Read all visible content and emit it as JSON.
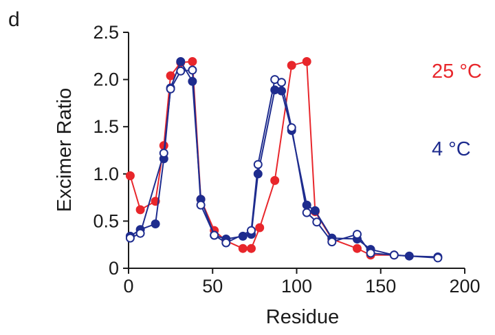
{
  "panel_label": "d",
  "chart_data": {
    "type": "line",
    "title": "",
    "xlabel": "Residue",
    "ylabel": "Excimer Ratio",
    "xlim": [
      0,
      200
    ],
    "ylim": [
      0,
      2.5
    ],
    "x_ticks": [
      0,
      50,
      100,
      150,
      200
    ],
    "y_ticks": [
      0,
      0.5,
      1.0,
      1.5,
      2.0,
      2.5
    ],
    "x_tick_labels": [
      "0",
      "50",
      "100",
      "150",
      "200"
    ],
    "y_tick_labels": [
      "0",
      "0.5",
      "1.0",
      "1.5",
      "2.0",
      "2.5"
    ],
    "grid": false,
    "legend_placement": "right",
    "series": [
      {
        "name": "25 °C",
        "color": "#e8262b",
        "marker": "filled-circle",
        "x": [
          1,
          7,
          16,
          21,
          25,
          31,
          38,
          43,
          51,
          58,
          68,
          73,
          78,
          87,
          97,
          106,
          111,
          121,
          136,
          144,
          158
        ],
        "y": [
          0.98,
          0.62,
          0.71,
          1.3,
          2.04,
          2.18,
          2.19,
          0.73,
          0.4,
          0.29,
          0.21,
          0.21,
          0.43,
          0.93,
          2.15,
          2.19,
          0.6,
          0.31,
          0.21,
          0.14,
          0.14
        ]
      },
      {
        "name": "4 °C",
        "color": "#1e2c8e",
        "marker": "filled-circle",
        "x": [
          1,
          7,
          16,
          21,
          25,
          31,
          38,
          43,
          51,
          58,
          68,
          73,
          77,
          87,
          91,
          97,
          106,
          111,
          121,
          136,
          144,
          158,
          167,
          184
        ],
        "y": [
          0.34,
          0.41,
          0.47,
          1.16,
          1.91,
          2.19,
          1.98,
          0.73,
          0.35,
          0.31,
          0.34,
          0.36,
          1.0,
          1.89,
          1.88,
          1.46,
          0.67,
          0.61,
          0.32,
          0.31,
          0.2,
          0.14,
          0.13,
          0.12
        ]
      },
      {
        "name": "4 °C open",
        "color": "#1e2c8e",
        "marker": "open-circle",
        "x": [
          1,
          7,
          21,
          25,
          31,
          38,
          43,
          51,
          58,
          73,
          77,
          87,
          91,
          97,
          106,
          112,
          121,
          136,
          144,
          158,
          184
        ],
        "y": [
          0.32,
          0.37,
          1.22,
          1.9,
          2.09,
          2.1,
          0.67,
          0.35,
          0.27,
          0.4,
          1.1,
          2.0,
          1.97,
          1.49,
          0.59,
          0.49,
          0.28,
          0.36,
          0.16,
          0.14,
          0.11
        ]
      }
    ],
    "legend_entries": [
      "25 °C",
      "4 °C"
    ]
  }
}
